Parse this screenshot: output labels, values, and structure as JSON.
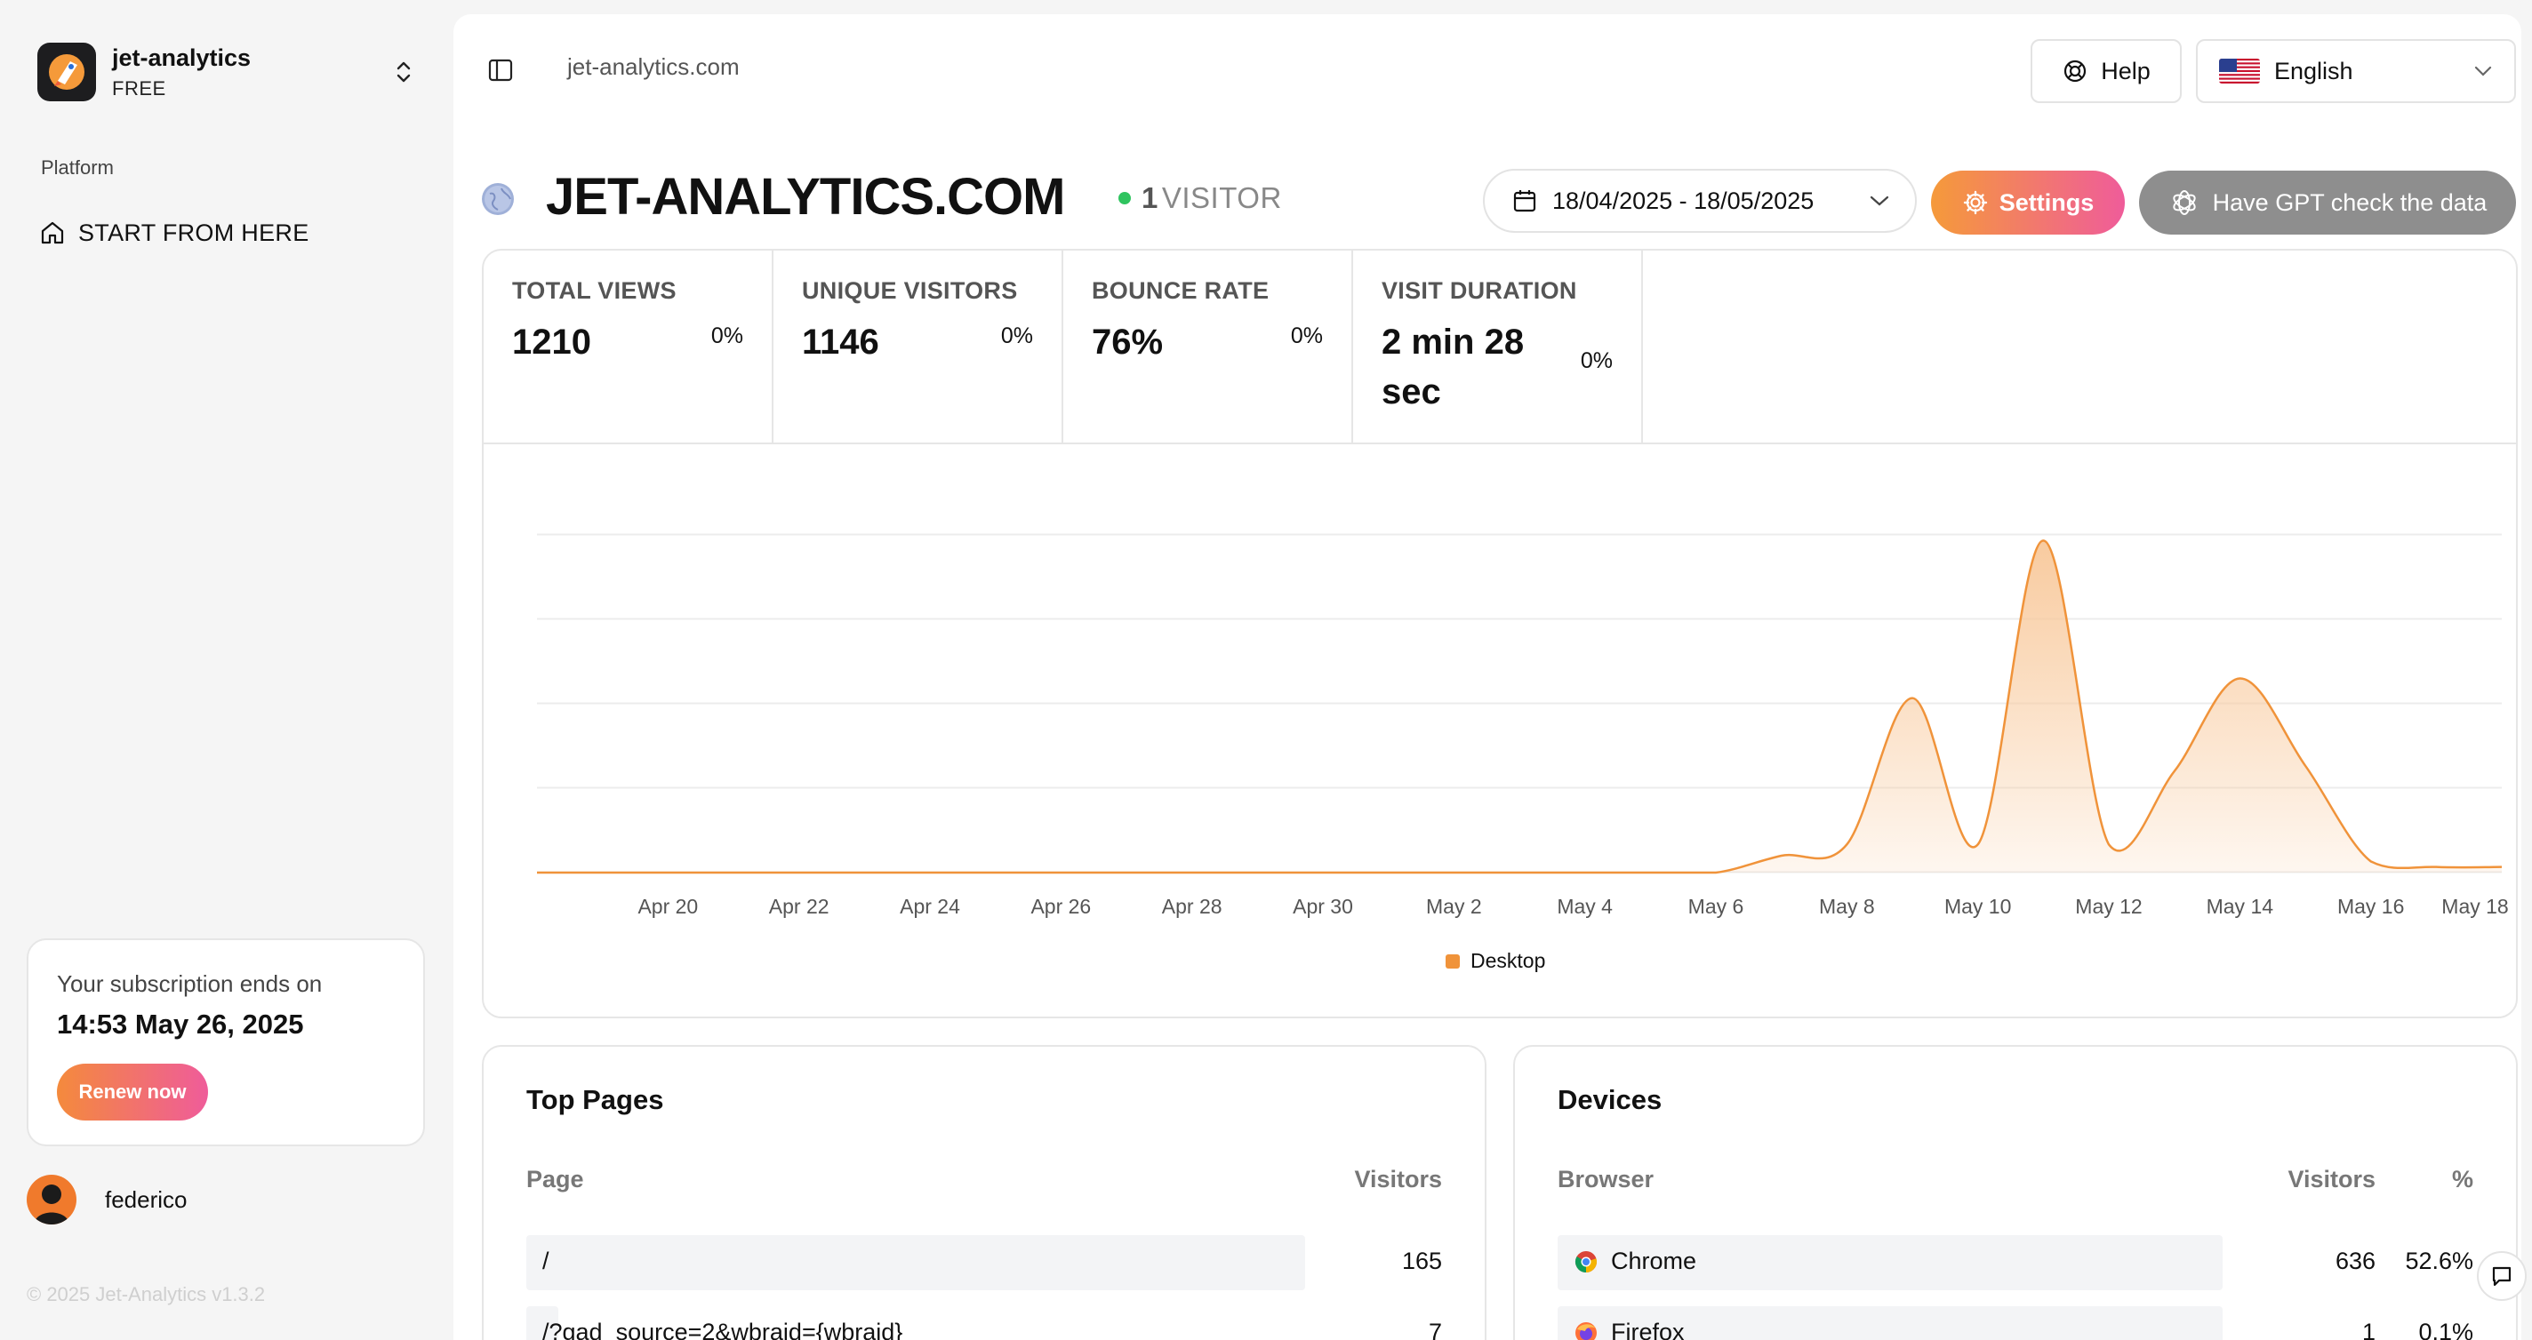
{
  "brand": {
    "name": "jet-analytics",
    "plan": "FREE"
  },
  "sidebar": {
    "section": "Platform",
    "items": [
      {
        "label": "START FROM HERE",
        "icon": "home-icon"
      }
    ]
  },
  "subscription": {
    "title": "Your subscription ends on",
    "date": "14:53 May 26, 2025",
    "renew_label": "Renew now"
  },
  "user": {
    "name": "federico"
  },
  "footer": {
    "copyright": "© 2025 Jet-Analytics v1.3.2"
  },
  "topbar": {
    "breadcrumb": "jet-analytics.com",
    "help_label": "Help",
    "language": "English"
  },
  "site": {
    "title": "JET-ANALYTICS.COM",
    "visitor_count": "1",
    "visitor_label": "VISITOR",
    "date_range": "18/04/2025 - 18/05/2025",
    "settings_label": "Settings",
    "gpt_label": "Have GPT check the data"
  },
  "stats": [
    {
      "label": "TOTAL VIEWS",
      "value": "1210",
      "change": "0%"
    },
    {
      "label": "UNIQUE VISITORS",
      "value": "1146",
      "change": "0%"
    },
    {
      "label": "BOUNCE RATE",
      "value": "76%",
      "change": "0%"
    },
    {
      "label": "VISIT DURATION",
      "value": "2 min 28 sec",
      "change": "0%"
    }
  ],
  "colors": {
    "accent": "#f0933a",
    "accent_fill": "#f8c89a",
    "gpt_gray": "#8e8e8e",
    "live": "#2fc45f"
  },
  "chart_data": {
    "type": "area",
    "x_ticks": [
      "Apr 20",
      "Apr 22",
      "Apr 24",
      "Apr 26",
      "Apr 28",
      "Apr 30",
      "May 2",
      "May 4",
      "May 6",
      "May 8",
      "May 10",
      "May 12",
      "May 14",
      "May 16",
      "May 18"
    ],
    "x": [
      "Apr 18",
      "Apr 19",
      "Apr 20",
      "Apr 21",
      "Apr 22",
      "Apr 23",
      "Apr 24",
      "Apr 25",
      "Apr 26",
      "Apr 27",
      "Apr 28",
      "Apr 29",
      "Apr 30",
      "May 1",
      "May 2",
      "May 3",
      "May 4",
      "May 5",
      "May 6",
      "May 7",
      "May 8",
      "May 9",
      "May 10",
      "May 11",
      "May 12",
      "May 13",
      "May 14",
      "May 15",
      "May 16",
      "May 17",
      "May 18"
    ],
    "series": [
      {
        "name": "Desktop",
        "values": [
          0,
          0,
          0,
          0,
          0,
          0,
          0,
          0,
          0,
          0,
          0,
          0,
          0,
          0,
          0,
          0,
          0,
          0,
          0,
          30,
          50,
          310,
          50,
          590,
          50,
          180,
          345,
          190,
          20,
          10,
          10
        ]
      }
    ],
    "ylim": [
      0,
      600
    ],
    "grid": true,
    "legend": "bottom-center"
  },
  "top_pages": {
    "title": "Top Pages",
    "columns": [
      "Page",
      "Visitors"
    ],
    "rows": [
      {
        "page": "/",
        "visitors": "165",
        "share": 0.97
      },
      {
        "page": "/?gad_source=2&wbraid={wbraid}",
        "visitors": "7",
        "share": 0.04
      }
    ]
  },
  "devices": {
    "title": "Devices",
    "columns": [
      "Browser",
      "Visitors",
      "%"
    ],
    "rows": [
      {
        "browser": "Chrome",
        "icon": "chrome-icon",
        "visitors": "636",
        "percent": "52.6%",
        "share": 1.0
      },
      {
        "browser": "Firefox",
        "icon": "firefox-icon",
        "visitors": "1",
        "percent": "0.1%",
        "share": 1.0
      }
    ]
  }
}
